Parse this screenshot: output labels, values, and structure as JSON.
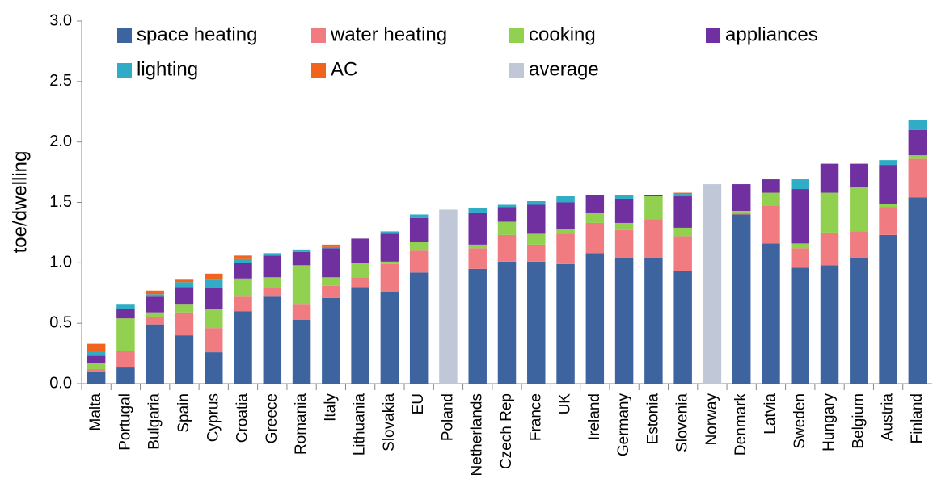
{
  "chart_data": {
    "type": "stacked_bar",
    "y_label": "toe/dwelling",
    "categories": [
      "Malta",
      "Portugal",
      "Bulgaria",
      "Spain",
      "Cyprus",
      "Croatia",
      "Greece",
      "Romania",
      "Italy",
      "Lithuania",
      "Slovakia",
      "EU",
      "Poland",
      "Netherlands",
      "Czech Rep",
      "France",
      "UK",
      "Ireland",
      "Germany",
      "Estonia",
      "Slovenia",
      "Norway",
      "Denmark",
      "Latvia",
      "Sweden",
      "Hungary",
      "Belgium",
      "Austria",
      "Finland"
    ],
    "series": [
      {
        "name": "space heating",
        "color": "#3e64a0",
        "values": [
          0.1,
          0.14,
          0.49,
          0.4,
          0.26,
          0.6,
          0.72,
          0.53,
          0.71,
          0.8,
          0.76,
          0.92,
          null,
          0.95,
          1.01,
          1.01,
          0.99,
          1.08,
          1.04,
          1.04,
          0.93,
          null,
          1.4,
          1.16,
          0.96,
          0.98,
          1.04,
          1.23,
          1.54
        ]
      },
      {
        "name": "water heating",
        "color": "#f07c82",
        "values": [
          0.02,
          0.13,
          0.06,
          0.19,
          0.2,
          0.12,
          0.08,
          0.13,
          0.1,
          0.08,
          0.23,
          0.18,
          null,
          0.17,
          0.22,
          0.14,
          0.25,
          0.25,
          0.23,
          0.32,
          0.29,
          null,
          0.01,
          0.31,
          0.16,
          0.27,
          0.22,
          0.23,
          0.32
        ]
      },
      {
        "name": "cooking",
        "color": "#92d050",
        "values": [
          0.05,
          0.27,
          0.04,
          0.07,
          0.16,
          0.15,
          0.08,
          0.32,
          0.07,
          0.12,
          0.02,
          0.07,
          null,
          0.03,
          0.11,
          0.09,
          0.04,
          0.08,
          0.06,
          0.19,
          0.07,
          null,
          0.02,
          0.11,
          0.04,
          0.33,
          0.37,
          0.03,
          0.03
        ]
      },
      {
        "name": "appliances",
        "color": "#7030a0",
        "values": [
          0.06,
          0.08,
          0.13,
          0.14,
          0.17,
          0.13,
          0.18,
          0.11,
          0.24,
          0.2,
          0.23,
          0.2,
          null,
          0.26,
          0.12,
          0.24,
          0.22,
          0.15,
          0.2,
          0.01,
          0.26,
          null,
          0.22,
          0.11,
          0.45,
          0.24,
          0.19,
          0.32,
          0.21
        ]
      },
      {
        "name": "lighting",
        "color": "#31acc6",
        "values": [
          0.04,
          0.04,
          0.02,
          0.04,
          0.07,
          0.03,
          0.01,
          0.02,
          0.01,
          0,
          0.02,
          0.03,
          null,
          0.04,
          0.02,
          0.03,
          0.05,
          0,
          0.03,
          0,
          0.02,
          null,
          0,
          0,
          0.08,
          0,
          0,
          0.04,
          0.08
        ]
      },
      {
        "name": "AC",
        "color": "#f0641e",
        "values": [
          0.06,
          0,
          0.03,
          0.02,
          0.05,
          0.03,
          0.01,
          0,
          0.02,
          0,
          0,
          0,
          null,
          0,
          0,
          0,
          0,
          0,
          0,
          0,
          0.01,
          null,
          0,
          0,
          0,
          0,
          0,
          0,
          0
        ]
      },
      {
        "name": "average",
        "color": "#c0c8d8",
        "values": [
          null,
          null,
          null,
          null,
          null,
          null,
          null,
          null,
          null,
          null,
          null,
          null,
          1.44,
          null,
          null,
          null,
          null,
          null,
          null,
          null,
          null,
          1.65,
          null,
          null,
          null,
          null,
          null,
          null,
          null
        ]
      }
    ],
    "ylim": [
      0,
      3.0
    ],
    "yticks": [
      {
        "value": 0,
        "label": "0.0"
      },
      0.5,
      {
        "value": 1,
        "label": "1.0"
      },
      1.5,
      {
        "value": 2,
        "label": "2.0"
      },
      2.5,
      {
        "value": 3,
        "label": "3.0"
      }
    ],
    "legend": "top"
  }
}
